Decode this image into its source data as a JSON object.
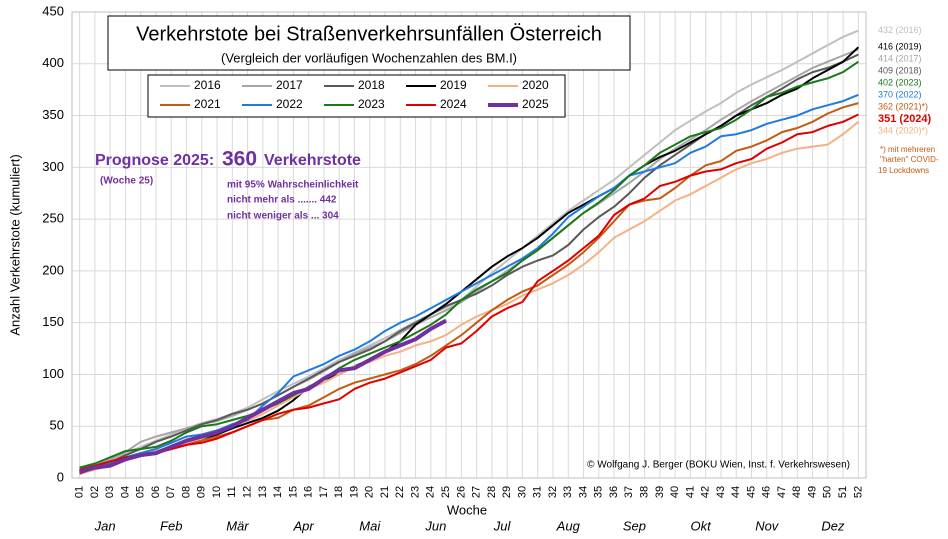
{
  "chart_data": {
    "type": "line",
    "title": "Verkehrstote bei Straßenverkehrsunfällen Österreich",
    "subtitle": "(Vergleich der vorläufigen Wochenzahlen  des BM.I)",
    "x_label": "Woche",
    "y_label": "Anzahl Verkehrstote (kumuliert)",
    "months": [
      "Jan",
      "Feb",
      "Mär",
      "Apr",
      "Mai",
      "Jun",
      "Jul",
      "Aug",
      "Sep",
      "Okt",
      "Nov",
      "Dez"
    ],
    "categories": [
      "01",
      "02",
      "03",
      "04",
      "05",
      "06",
      "07",
      "08",
      "09",
      "10",
      "11",
      "12",
      "13",
      "14",
      "15",
      "16",
      "17",
      "18",
      "19",
      "20",
      "21",
      "22",
      "23",
      "24",
      "25",
      "26",
      "27",
      "28",
      "29",
      "30",
      "31",
      "32",
      "33",
      "34",
      "35",
      "36",
      "37",
      "38",
      "39",
      "40",
      "41",
      "42",
      "43",
      "44",
      "45",
      "46",
      "47",
      "48",
      "49",
      "50",
      "51",
      "52"
    ],
    "ylim": [
      0,
      450
    ],
    "yticks": [
      0,
      50,
      100,
      150,
      200,
      250,
      300,
      350,
      400,
      450
    ],
    "grid": true,
    "prognosis": {
      "label": "Prognose 2025:",
      "value": "360",
      "unit": "Verkehrstote",
      "week": "(Woche 25)",
      "lines": [
        "mit 95% Wahrscheinlichkeit",
        "nicht mehr als .......  442",
        "nicht weniger als ...  304"
      ]
    },
    "note": [
      "*) mit mehreren",
      "\"harten\" COVID-",
      "19 Lockdowns"
    ],
    "credit": "© Wolfgang J. Berger (BOKU Wien, Inst. f. Verkehrswesen)",
    "series": [
      {
        "name": "2016",
        "color": "#bfbfbf",
        "end_label": "432 (2016)",
        "values": [
          6,
          10,
          16,
          24,
          30,
          36,
          42,
          48,
          53,
          57,
          62,
          68,
          76,
          84,
          91,
          98,
          106,
          114,
          121,
          128,
          135,
          143,
          151,
          158,
          165,
          172,
          185,
          198,
          210,
          222,
          234,
          246,
          258,
          268,
          278,
          288,
          300,
          312,
          324,
          336,
          345,
          354,
          362,
          372,
          380,
          387,
          394,
          402,
          410,
          418,
          426,
          432
        ]
      },
      {
        "name": "2017",
        "color": "#a6a6a6",
        "end_label": "414 (2017)",
        "values": [
          7,
          12,
          18,
          25,
          35,
          40,
          44,
          48,
          52,
          55,
          60,
          66,
          72,
          80,
          88,
          95,
          103,
          112,
          120,
          126,
          132,
          140,
          148,
          155,
          162,
          170,
          180,
          190,
          200,
          210,
          220,
          232,
          244,
          256,
          265,
          275,
          285,
          296,
          308,
          318,
          327,
          336,
          346,
          355,
          364,
          372,
          380,
          388,
          396,
          402,
          408,
          414
        ]
      },
      {
        "name": "2018",
        "color": "#595959",
        "end_label": "409 (2018)",
        "values": [
          6,
          10,
          15,
          22,
          28,
          35,
          40,
          46,
          52,
          56,
          62,
          66,
          72,
          80,
          88,
          96,
          104,
          112,
          118,
          124,
          132,
          142,
          150,
          158,
          166,
          172,
          178,
          186,
          196,
          204,
          210,
          215,
          225,
          240,
          252,
          262,
          275,
          290,
          302,
          312,
          322,
          332,
          340,
          350,
          360,
          368,
          376,
          385,
          392,
          396,
          402,
          409
        ]
      },
      {
        "name": "2019",
        "color": "#000000",
        "end_label": "416 (2019)",
        "values": [
          5,
          10,
          14,
          18,
          22,
          25,
          28,
          32,
          38,
          42,
          48,
          53,
          58,
          65,
          75,
          88,
          95,
          100,
          108,
          114,
          122,
          132,
          148,
          158,
          168,
          180,
          192,
          204,
          214,
          222,
          232,
          244,
          256,
          264,
          272,
          280,
          292,
          302,
          310,
          316,
          324,
          332,
          340,
          350,
          356,
          362,
          370,
          376,
          386,
          394,
          402,
          416
        ]
      },
      {
        "name": "2020",
        "color": "#f4b183",
        "end_label": "344 (2020)*)",
        "values": [
          4,
          8,
          12,
          18,
          22,
          26,
          30,
          34,
          38,
          44,
          50,
          55,
          62,
          70,
          78,
          86,
          92,
          100,
          108,
          112,
          118,
          122,
          128,
          132,
          138,
          148,
          156,
          162,
          168,
          176,
          182,
          188,
          196,
          206,
          218,
          232,
          240,
          248,
          258,
          268,
          274,
          282,
          290,
          298,
          304,
          308,
          314,
          318,
          320,
          322,
          332,
          344
        ]
      },
      {
        "name": "2021",
        "color": "#c55a11",
        "end_label": "362 (2021)*)",
        "values": [
          4,
          10,
          15,
          20,
          24,
          24,
          28,
          32,
          36,
          40,
          44,
          50,
          56,
          58,
          66,
          70,
          78,
          86,
          92,
          96,
          100,
          104,
          110,
          118,
          128,
          138,
          150,
          162,
          172,
          180,
          186,
          196,
          206,
          218,
          232,
          248,
          264,
          268,
          270,
          280,
          292,
          302,
          306,
          316,
          320,
          326,
          334,
          338,
          344,
          352,
          358,
          362
        ]
      },
      {
        "name": "2022",
        "color": "#1f7be0",
        "end_label": "370 (2022)",
        "values": [
          6,
          10,
          15,
          20,
          24,
          28,
          34,
          40,
          42,
          46,
          52,
          56,
          70,
          82,
          98,
          104,
          110,
          118,
          124,
          132,
          142,
          150,
          156,
          164,
          172,
          180,
          188,
          196,
          204,
          212,
          222,
          236,
          252,
          262,
          272,
          280,
          292,
          296,
          300,
          304,
          314,
          320,
          330,
          332,
          336,
          342,
          346,
          350,
          356,
          360,
          364,
          370
        ]
      },
      {
        "name": "2023",
        "color": "#1a7a1a",
        "end_label": "402 (2023)",
        "values": [
          10,
          14,
          20,
          26,
          28,
          30,
          36,
          44,
          50,
          52,
          56,
          60,
          66,
          72,
          80,
          88,
          96,
          106,
          114,
          120,
          126,
          132,
          140,
          148,
          158,
          172,
          182,
          190,
          198,
          210,
          220,
          232,
          244,
          256,
          266,
          278,
          292,
          302,
          314,
          322,
          330,
          334,
          338,
          346,
          356,
          368,
          372,
          378,
          382,
          386,
          392,
          402
        ]
      },
      {
        "name": "2024",
        "color": "#e00000",
        "end_label": "351 (2024)",
        "values": [
          8,
          12,
          16,
          20,
          22,
          24,
          28,
          32,
          34,
          38,
          44,
          50,
          56,
          62,
          66,
          68,
          72,
          76,
          86,
          92,
          96,
          102,
          108,
          114,
          126,
          130,
          142,
          156,
          164,
          170,
          190,
          200,
          210,
          222,
          234,
          254,
          264,
          270,
          282,
          286,
          292,
          296,
          298,
          304,
          308,
          318,
          324,
          332,
          334,
          340,
          344,
          351
        ]
      },
      {
        "name": "2025",
        "color": "#7030a0",
        "values": [
          6,
          10,
          12,
          18,
          22,
          24,
          30,
          36,
          40,
          44,
          50,
          58,
          66,
          74,
          82,
          86,
          96,
          104,
          106,
          114,
          122,
          128,
          134,
          144,
          152,
          null,
          null,
          null,
          null,
          null,
          null,
          null,
          null,
          null,
          null,
          null,
          null,
          null,
          null,
          null,
          null,
          null,
          null,
          null,
          null,
          null,
          null,
          null,
          null,
          null,
          null,
          null
        ]
      }
    ]
  }
}
